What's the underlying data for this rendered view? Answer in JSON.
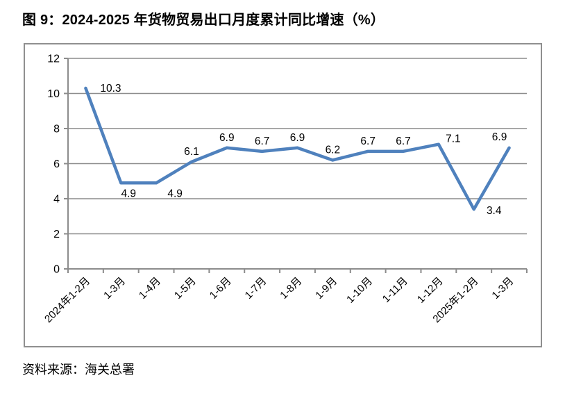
{
  "figure": {
    "title": "图 9：2024-2025 年货物贸易出口月度累计同比增速（%）",
    "source": "资料来源：海关总署"
  },
  "colors": {
    "line": "#4F81BD",
    "grid": "#8c8c8c",
    "axis": "#8c8c8c",
    "frame_border": "#8f8f8f",
    "text": "#000000"
  },
  "chart_data": {
    "type": "line",
    "title": "图 9：2024-2025 年货物贸易出口月度累计同比增速（%）",
    "categories": [
      "2024年1-2月",
      "1-3月",
      "1-4月",
      "1-5月",
      "1-6月",
      "1-7月",
      "1-8月",
      "1-9月",
      "1-10月",
      "1-11月",
      "1-12月",
      "2025年1-2月",
      "1-3月"
    ],
    "values": [
      10.3,
      4.9,
      4.9,
      6.1,
      6.9,
      6.7,
      6.9,
      6.2,
      6.7,
      6.7,
      7.1,
      3.4,
      6.9
    ],
    "data_labels_shown": true,
    "label_positions": [
      "right",
      "below",
      "below-right",
      "above",
      "above",
      "above",
      "above",
      "above",
      "above",
      "above",
      "above-right",
      "right-low",
      "above-left"
    ],
    "xlabel": "",
    "ylabel": "",
    "ylim": [
      0,
      12
    ],
    "yticks": [
      0,
      2,
      4,
      6,
      8,
      10,
      12
    ],
    "xtick_rotation_deg": -45,
    "grid": true,
    "legend": "none"
  }
}
